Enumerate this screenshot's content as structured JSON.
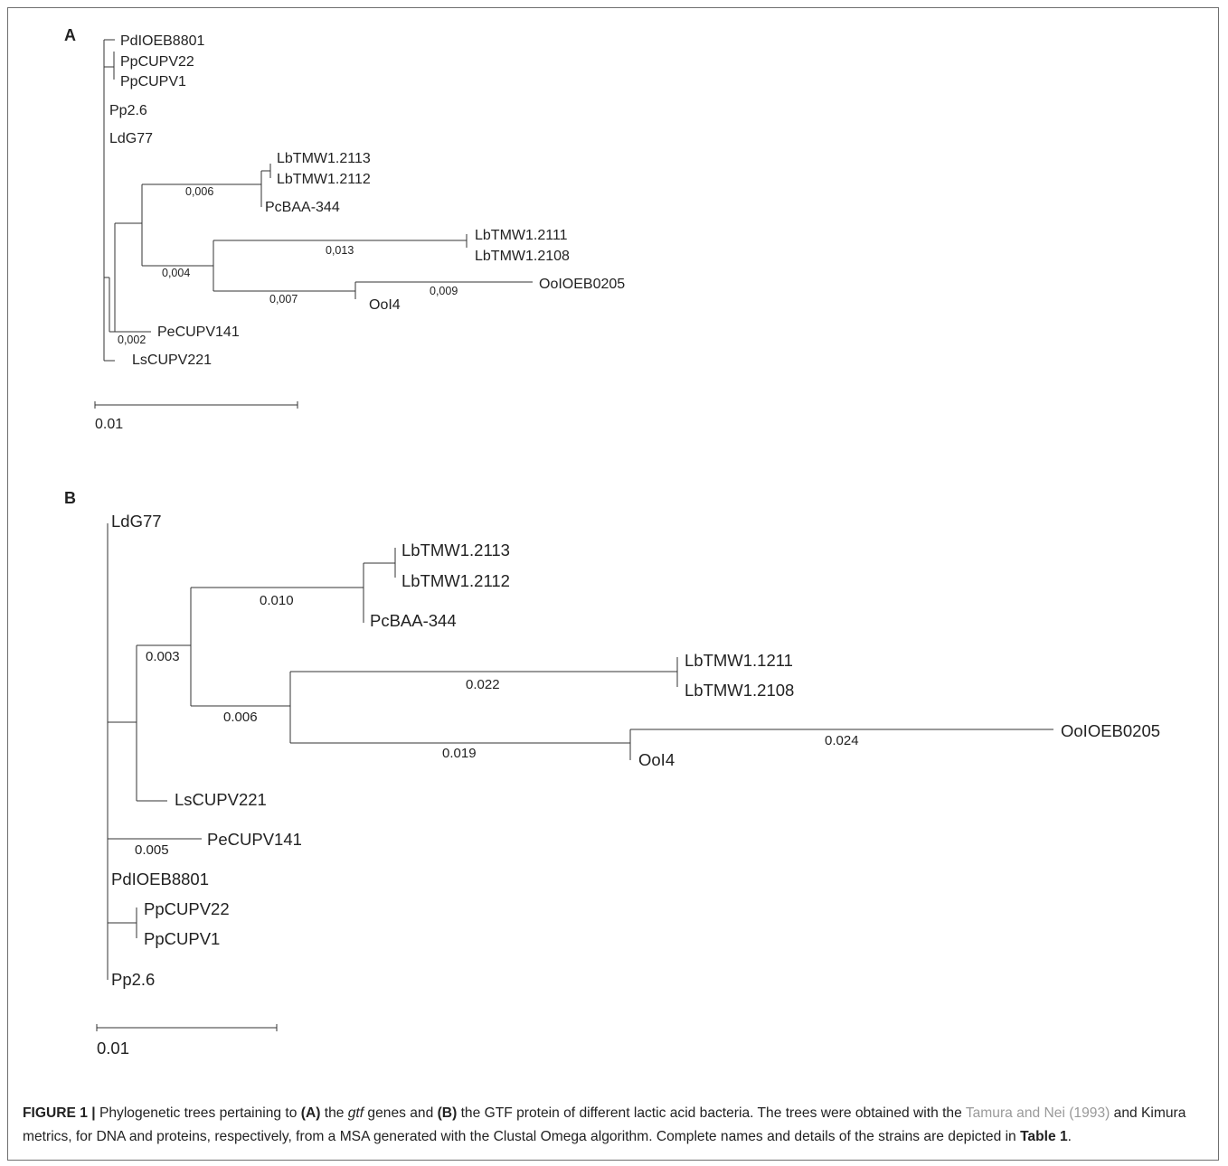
{
  "panel_a": {
    "label": "A",
    "leaves": {
      "pdioeb8801": "PdIOEB8801",
      "ppcupv22": "PpCUPV22",
      "ppcupv1": "PpCUPV1",
      "pp26": "Pp2.6",
      "ldg77": "LdG77",
      "lbtmw12113": "LbTMW1.2113",
      "lbtmw12112": "LbTMW1.2112",
      "pcbaa344": "PcBAA-344",
      "lbtmw12111": "LbTMW1.2111",
      "lbtmw12108": "LbTMW1.2108",
      "ooioeb0205": "OoIOEB0205",
      "ooi4": "OoI4",
      "pecupv141": "PeCUPV141",
      "lscupv221": "LsCUPV221"
    },
    "branch_lengths": {
      "b006": "0,006",
      "b013": "0,013",
      "b004": "0,004",
      "b009": "0,009",
      "b007": "0,007",
      "b002": "0,002"
    },
    "scale_label": "0.01"
  },
  "panel_b": {
    "label": "B",
    "leaves": {
      "ldg77": "LdG77",
      "lbtmw12113": "LbTMW1.2113",
      "lbtmw12112": "LbTMW1.2112",
      "pcbaa344": "PcBAA-344",
      "lbtmw11211": "LbTMW1.1211",
      "lbtmw12108": "LbTMW1.2108",
      "ooioeb0205": "OoIOEB0205",
      "ooi4": "OoI4",
      "lscupv221": "LsCUPV221",
      "pecupv141": "PeCUPV141",
      "pdioeb8801": "PdIOEB8801",
      "ppcupv22": "PpCUPV22",
      "ppcupv1": "PpCUPV1",
      "pp26": "Pp2.6"
    },
    "branch_lengths": {
      "b010": "0.010",
      "b003": "0.003",
      "b022": "0.022",
      "b006": "0.006",
      "b024": "0.024",
      "b019": "0.019",
      "b005": "0.005"
    },
    "scale_label": "0.01"
  },
  "caption": {
    "figure_label": "FIGURE 1 |",
    "t1": " Phylogenetic trees pertaining to ",
    "a_ref": "(A)",
    "t2": " the ",
    "gene": "gtf",
    "t3": " genes and ",
    "b_ref": "(B)",
    "t4": " the GTF protein of different lactic acid bacteria. The trees were obtained with the ",
    "citation": "Tamura and Nei (1993)",
    "t5": " and Kimura metrics, for DNA and proteins, respectively, from a MSA generated with the Clustal Omega algorithm. Complete names and details of the strains are depicted in ",
    "table_ref": "Table 1",
    "t6": "."
  }
}
